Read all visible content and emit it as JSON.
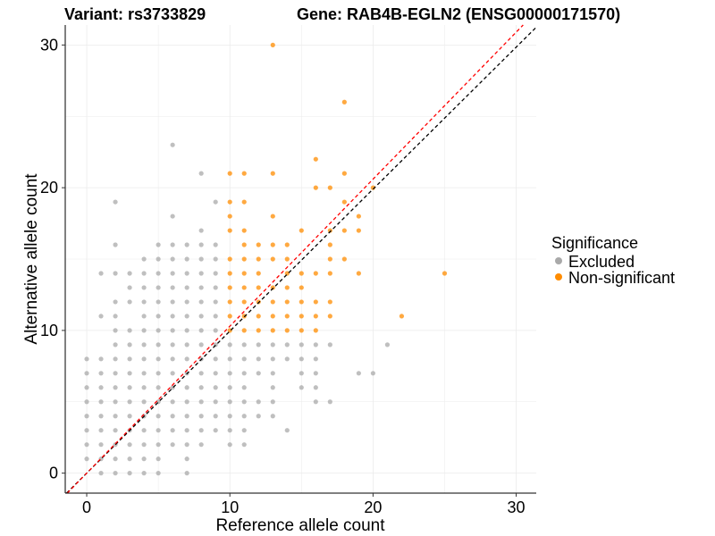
{
  "chart_data": {
    "type": "scatter",
    "title_left": "Variant: rs3733829",
    "title_right": "Gene: RAB4B-EGLN2 (ENSG00000171570)",
    "xlabel": "Reference allele count",
    "ylabel": "Alternative allele count",
    "xlim": [
      -1.5,
      31.4
    ],
    "ylim": [
      -1.4,
      31.4
    ],
    "xticks": [
      "0",
      "10",
      "20",
      "30"
    ],
    "yticks": [
      "0",
      "10",
      "20",
      "30"
    ],
    "grid": true,
    "legend": {
      "title": "Significance",
      "position": "right",
      "entries": [
        {
          "label": "Excluded",
          "color": "#A9A9A9"
        },
        {
          "label": "Non-significant",
          "color": "#FF8C00"
        }
      ]
    },
    "lines": [
      {
        "name": "identity",
        "color": "#000000",
        "slope": 0.995,
        "style": "dashed"
      },
      {
        "name": "fit",
        "color": "#FF0000",
        "slope": 1.03,
        "style": "dashed"
      }
    ],
    "series": [
      {
        "name": "Non-significant",
        "color": "#FF8C00",
        "rows": {
          "30": [
            13
          ],
          "26": [
            18
          ],
          "22": [
            16
          ],
          "21": [
            10,
            11,
            13,
            18
          ],
          "20": [
            16,
            17,
            20
          ],
          "19": [
            10,
            11,
            18
          ],
          "18": [
            10,
            13,
            19
          ],
          "17": [
            10,
            11,
            15,
            17,
            18,
            19
          ],
          "16": [
            11,
            12,
            13,
            14,
            17
          ],
          "15": [
            10,
            11,
            12,
            13,
            14,
            17,
            18
          ],
          "14": [
            10,
            11,
            12,
            14,
            15,
            16,
            17,
            19,
            25
          ],
          "13": [
            10,
            11,
            12,
            13,
            14,
            15
          ],
          "12": [
            10,
            11,
            12,
            13,
            14,
            15,
            16,
            17
          ],
          "11": [
            10,
            11,
            12,
            13,
            14,
            15,
            16,
            17,
            22
          ],
          "10": [
            10,
            11,
            12,
            13,
            14,
            15,
            16
          ]
        }
      },
      {
        "name": "Excluded",
        "color": "#A9A9A9",
        "rows": {
          "23": [
            6
          ],
          "21": [
            8
          ],
          "19": [
            2,
            9
          ],
          "18": [
            6
          ],
          "17": [
            8
          ],
          "16": [
            2,
            5,
            6,
            7,
            8,
            9
          ],
          "15": [
            4,
            5,
            6,
            7,
            8,
            9
          ],
          "14": [
            1,
            2,
            3,
            4,
            5,
            6,
            7,
            8,
            9
          ],
          "13": [
            3,
            4,
            5,
            6,
            7,
            8,
            9
          ],
          "12": [
            2,
            3,
            4,
            5,
            6,
            7,
            8,
            9
          ],
          "11": [
            1,
            2,
            4,
            5,
            6,
            7,
            8,
            9
          ],
          "10": [
            2,
            3,
            4,
            5,
            6,
            7,
            8,
            9
          ],
          "9": [
            2,
            3,
            4,
            5,
            6,
            7,
            8,
            9,
            10,
            11,
            12,
            13,
            14,
            15,
            16,
            17,
            21
          ],
          "8": [
            0,
            1,
            2,
            3,
            4,
            5,
            6,
            7,
            8,
            9,
            10,
            11,
            12,
            13,
            14,
            15,
            16
          ],
          "7": [
            0,
            1,
            2,
            3,
            4,
            5,
            6,
            7,
            8,
            9,
            10,
            11,
            12,
            13,
            15,
            16,
            19,
            20
          ],
          "6": [
            0,
            1,
            2,
            3,
            4,
            5,
            6,
            7,
            8,
            9,
            10,
            11,
            13,
            15,
            16
          ],
          "5": [
            0,
            1,
            2,
            3,
            4,
            5,
            6,
            7,
            8,
            9,
            10,
            11,
            12,
            13,
            16,
            17
          ],
          "4": [
            0,
            1,
            2,
            3,
            4,
            5,
            6,
            7,
            8,
            9,
            10,
            11,
            12,
            13
          ],
          "3": [
            0,
            1,
            2,
            3,
            4,
            5,
            6,
            7,
            8,
            9,
            10,
            11,
            14
          ],
          "2": [
            0,
            1,
            2,
            3,
            4,
            5,
            6,
            7,
            8,
            10,
            11
          ],
          "1": [
            0,
            1,
            2,
            3,
            4,
            5,
            7
          ],
          "0": [
            1,
            2,
            3,
            4,
            5,
            7
          ]
        }
      }
    ]
  }
}
